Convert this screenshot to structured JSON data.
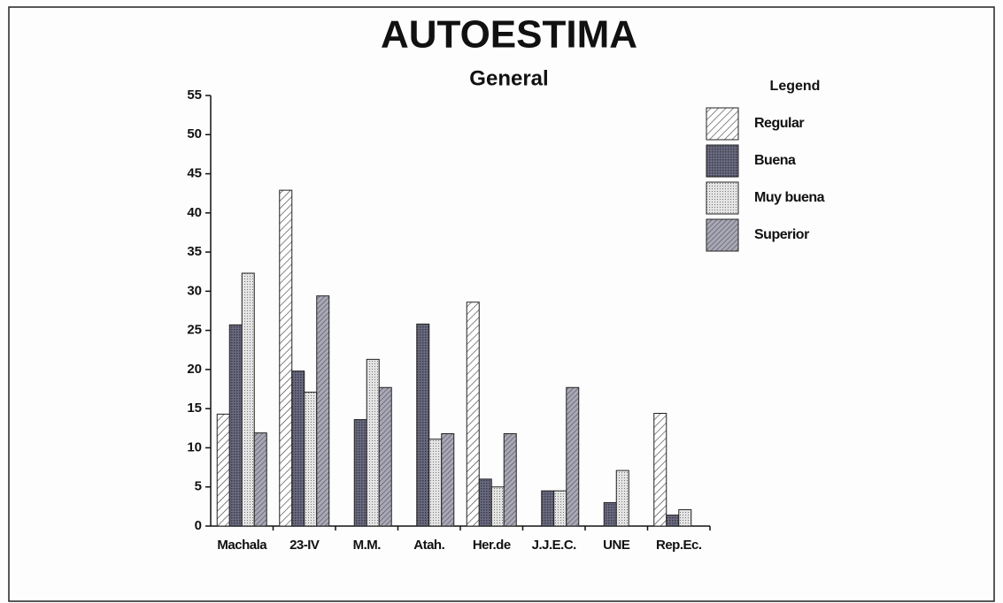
{
  "chart_data": {
    "type": "bar",
    "title": "AUTOESTIMA",
    "subtitle": "General",
    "legend_title": "Legend",
    "categories": [
      "Machala",
      "23-IV",
      "M.M.",
      "Atah.",
      "Her.de",
      "J.J.E.C.",
      "UNE",
      "Rep.Ec."
    ],
    "series": [
      {
        "name": "Regular",
        "color": "#ffffff",
        "pattern": "hatch",
        "values": [
          14.3,
          42.9,
          0,
          0,
          28.6,
          0,
          0,
          14.4
        ]
      },
      {
        "name": "Buena",
        "color": "#6a6a80",
        "pattern": "dense",
        "values": [
          25.7,
          19.8,
          13.6,
          25.8,
          6.0,
          4.5,
          3.0,
          1.4
        ]
      },
      {
        "name": "Muy buena",
        "color": "#d8d8d8",
        "pattern": "dots",
        "values": [
          32.3,
          17.1,
          21.3,
          11.1,
          5.0,
          4.5,
          7.1,
          2.1
        ]
      },
      {
        "name": "Superior",
        "color": "#9a9aac",
        "pattern": "crosshatch",
        "values": [
          11.9,
          29.4,
          17.7,
          11.8,
          11.8,
          17.7,
          0,
          0
        ]
      }
    ],
    "ylim": [
      0,
      55
    ],
    "yticks": [
      0,
      5,
      10,
      15,
      20,
      25,
      30,
      35,
      40,
      45,
      50,
      55
    ],
    "legend": "right"
  }
}
